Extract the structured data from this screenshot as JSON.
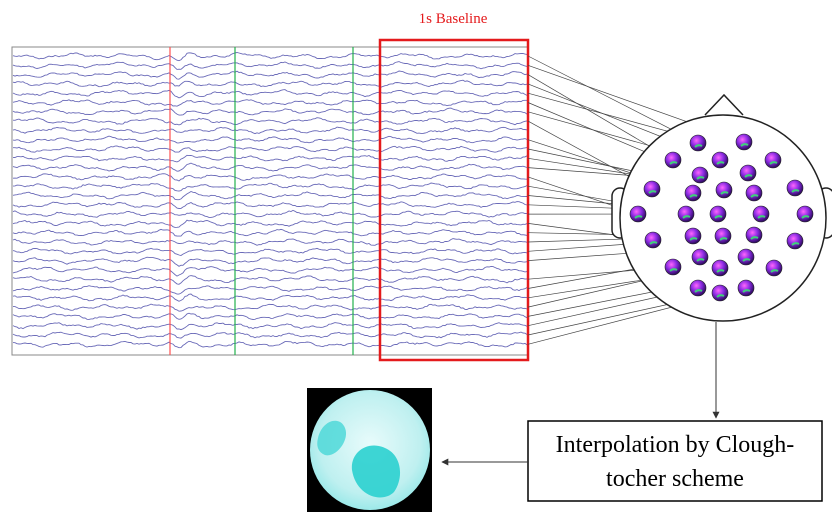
{
  "baseline_label": "1s Baseline",
  "interpolation_box": {
    "lines": [
      "Interpolation by Clough-",
      "tocher scheme"
    ]
  }
}
